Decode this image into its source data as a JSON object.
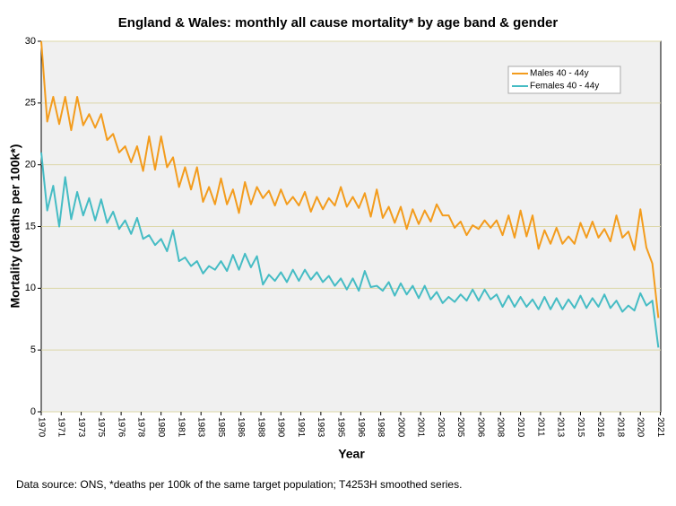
{
  "chart_data": {
    "type": "line",
    "title": "England & Wales: monthly all cause mortality* by age band & gender",
    "xlabel": "Year",
    "ylabel": "Mortality (deaths per 100k*)",
    "footnote": "Data source: ONS, *deaths per 100k of the same target population; T4253H smoothed series.",
    "x": [
      1970,
      1970.5,
      1971,
      1971.5,
      1972,
      1972.5,
      1973,
      1973.5,
      1974,
      1974.5,
      1975,
      1975.5,
      1976,
      1976.5,
      1977,
      1977.5,
      1978,
      1978.5,
      1979,
      1979.5,
      1980,
      1980.5,
      1981,
      1981.5,
      1982,
      1982.5,
      1983,
      1983.5,
      1984,
      1984.5,
      1985,
      1985.5,
      1986,
      1986.5,
      1987,
      1987.5,
      1988,
      1988.5,
      1989,
      1989.5,
      1990,
      1990.5,
      1991,
      1991.5,
      1992,
      1992.5,
      1993,
      1993.5,
      1994,
      1994.5,
      1995,
      1995.5,
      1996,
      1996.5,
      1997,
      1997.5,
      1998,
      1998.5,
      1999,
      1999.5,
      2000,
      2000.5,
      2001,
      2001.5,
      2002,
      2002.5,
      2003,
      2003.5,
      2004,
      2004.5,
      2005,
      2005.5,
      2006,
      2006.5,
      2007,
      2007.5,
      2008,
      2008.5,
      2009,
      2009.5,
      2010,
      2010.5,
      2011,
      2011.5,
      2012,
      2012.5,
      2013,
      2013.5,
      2014,
      2014.5,
      2015,
      2015.5,
      2016,
      2016.5,
      2017,
      2017.5,
      2018,
      2018.5,
      2019,
      2019.5,
      2020,
      2020.5,
      2021,
      2021.5
    ],
    "series": [
      {
        "name": "Males 40 - 44y",
        "color": "#f39c1d",
        "values": [
          30,
          23.5,
          25.5,
          23.3,
          25.5,
          22.8,
          25.5,
          23.2,
          24.1,
          23,
          24.1,
          22,
          22.5,
          21,
          21.5,
          20.2,
          21.5,
          19.5,
          22.3,
          19.6,
          22.3,
          19.8,
          20.6,
          18.2,
          19.8,
          18,
          19.8,
          17,
          18.2,
          16.8,
          18.9,
          16.8,
          18,
          16.1,
          18.6,
          16.8,
          18.2,
          17.3,
          17.9,
          16.7,
          18,
          16.8,
          17.4,
          16.7,
          17.8,
          16.2,
          17.4,
          16.4,
          17.3,
          16.7,
          18.2,
          16.6,
          17.4,
          16.5,
          17.7,
          15.8,
          18,
          15.7,
          16.6,
          15.3,
          16.6,
          14.8,
          16.4,
          15.2,
          16.3,
          15.4,
          16.8,
          15.9,
          15.9,
          14.9,
          15.4,
          14.3,
          15.1,
          14.8,
          15.5,
          14.9,
          15.5,
          14.3,
          15.9,
          14.1,
          16.3,
          14.2,
          15.9,
          13.2,
          14.7,
          13.6,
          14.9,
          13.6,
          14.2,
          13.6,
          15.3,
          14.1,
          15.4,
          14.1,
          14.8,
          13.8,
          15.9,
          14.1,
          14.6,
          13.1,
          16.4,
          13.3,
          12,
          7.6
        ]
      },
      {
        "name": "Females 40 - 44y",
        "color": "#45bcc4",
        "values": [
          21,
          16.3,
          18.3,
          15,
          19,
          15.6,
          17.8,
          15.9,
          17.3,
          15.5,
          17.2,
          15.3,
          16.2,
          14.8,
          15.5,
          14.4,
          15.7,
          14,
          14.3,
          13.5,
          14,
          13,
          14.7,
          12.2,
          12.5,
          11.8,
          12.2,
          11.2,
          11.8,
          11.5,
          12.2,
          11.4,
          12.7,
          11.5,
          12.8,
          11.7,
          12.6,
          10.3,
          11.1,
          10.6,
          11.3,
          10.5,
          11.5,
          10.6,
          11.5,
          10.7,
          11.3,
          10.5,
          11,
          10.2,
          10.8,
          9.9,
          10.8,
          9.8,
          11.4,
          10.1,
          10.2,
          9.8,
          10.5,
          9.4,
          10.4,
          9.5,
          10.2,
          9.2,
          10.2,
          9.1,
          9.7,
          8.8,
          9.3,
          8.9,
          9.5,
          9,
          9.9,
          9,
          9.9,
          9.1,
          9.5,
          8.5,
          9.4,
          8.5,
          9.3,
          8.5,
          9.1,
          8.3,
          9.3,
          8.3,
          9.2,
          8.3,
          9.1,
          8.4,
          9.4,
          8.4,
          9.2,
          8.5,
          9.5,
          8.4,
          9,
          8.1,
          8.6,
          8.2,
          9.6,
          8.6,
          9,
          5.2
        ]
      }
    ],
    "xlim": [
      1970,
      2021.7
    ],
    "xticks": [
      1970,
      {
        "value": 1971.667,
        "label": "1971"
      },
      {
        "value": 1973.333,
        "label": "1973"
      },
      1975,
      {
        "value": 1976.667,
        "label": "1976"
      },
      {
        "value": 1978.333,
        "label": "1978"
      },
      1980,
      {
        "value": 1981.667,
        "label": "1981"
      },
      {
        "value": 1983.333,
        "label": "1983"
      },
      1985,
      {
        "value": 1986.667,
        "label": "1986"
      },
      {
        "value": 1988.333,
        "label": "1988"
      },
      1990,
      {
        "value": 1991.667,
        "label": "1991"
      },
      {
        "value": 1993.333,
        "label": "1993"
      },
      1995,
      {
        "value": 1996.667,
        "label": "1996"
      },
      {
        "value": 1998.333,
        "label": "1998"
      },
      2000,
      {
        "value": 2001.667,
        "label": "2001"
      },
      {
        "value": 2003.333,
        "label": "2003"
      },
      2005,
      {
        "value": 2006.667,
        "label": "2006"
      },
      {
        "value": 2008.333,
        "label": "2008"
      },
      2010,
      {
        "value": 2011.667,
        "label": "2011"
      },
      {
        "value": 2013.333,
        "label": "2013"
      },
      2015,
      {
        "value": 2016.667,
        "label": "2016"
      },
      {
        "value": 2018.333,
        "label": "2018"
      },
      2020,
      {
        "value": 2021.667,
        "label": "2021"
      }
    ],
    "ylim": [
      0,
      30
    ],
    "yticks": [
      0,
      5,
      10,
      15,
      20,
      25,
      30
    ],
    "grid": true,
    "legend": "upper-right"
  }
}
